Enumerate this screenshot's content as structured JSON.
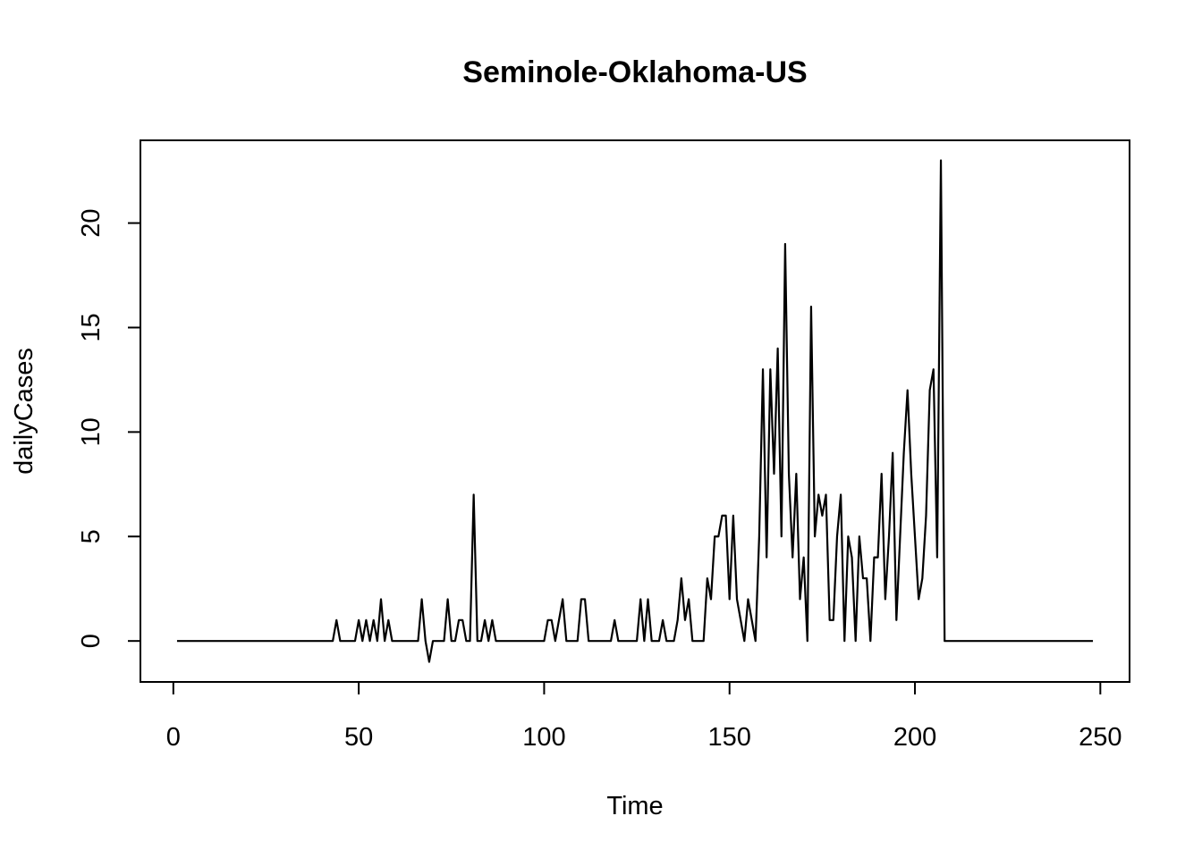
{
  "chart_data": {
    "type": "line",
    "title": "Seminole-Oklahoma-US",
    "x_label": "Time",
    "y_label": "dailyCases",
    "color": "#000000",
    "xlim": [
      -8.88,
      257.88
    ],
    "ylim": [
      -1.96,
      23.96
    ],
    "xticks": [
      0,
      50,
      100,
      150,
      200,
      250
    ],
    "yticks": [
      0,
      5,
      10,
      15,
      20
    ],
    "x": [
      1,
      2,
      3,
      4,
      5,
      6,
      7,
      8,
      9,
      10,
      11,
      12,
      13,
      14,
      15,
      16,
      17,
      18,
      19,
      20,
      21,
      22,
      23,
      24,
      25,
      26,
      27,
      28,
      29,
      30,
      31,
      32,
      33,
      34,
      35,
      36,
      37,
      38,
      39,
      40,
      41,
      42,
      43,
      44,
      45,
      46,
      47,
      48,
      49,
      50,
      51,
      52,
      53,
      54,
      55,
      56,
      57,
      58,
      59,
      60,
      61,
      62,
      63,
      64,
      65,
      66,
      67,
      68,
      69,
      70,
      71,
      72,
      73,
      74,
      75,
      76,
      77,
      78,
      79,
      80,
      81,
      82,
      83,
      84,
      85,
      86,
      87,
      88,
      89,
      90,
      91,
      92,
      93,
      94,
      95,
      96,
      97,
      98,
      99,
      100,
      101,
      102,
      103,
      104,
      105,
      106,
      107,
      108,
      109,
      110,
      111,
      112,
      113,
      114,
      115,
      116,
      117,
      118,
      119,
      120,
      121,
      122,
      123,
      124,
      125,
      126,
      127,
      128,
      129,
      130,
      131,
      132,
      133,
      134,
      135,
      136,
      137,
      138,
      139,
      140,
      141,
      142,
      143,
      144,
      145,
      146,
      147,
      148,
      149,
      150,
      151,
      152,
      153,
      154,
      155,
      156,
      157,
      158,
      159,
      160,
      161,
      162,
      163,
      164,
      165,
      166,
      167,
      168,
      169,
      170,
      171,
      172,
      173,
      174,
      175,
      176,
      177,
      178,
      179,
      180,
      181,
      182,
      183,
      184,
      185,
      186,
      187,
      188,
      189,
      190,
      191,
      192,
      193,
      194,
      195,
      196,
      197,
      198,
      199,
      200,
      201,
      202,
      203,
      204,
      205,
      206,
      207,
      208,
      209,
      210,
      211,
      212,
      213,
      214,
      215,
      216,
      217,
      218,
      219,
      220,
      221,
      222,
      223,
      224,
      225,
      226,
      227,
      228,
      229,
      230,
      231,
      232,
      233,
      234,
      235,
      236,
      237,
      238,
      239,
      240,
      241,
      242,
      243,
      244,
      245,
      246,
      247,
      248
    ],
    "values": [
      0,
      0,
      0,
      0,
      0,
      0,
      0,
      0,
      0,
      0,
      0,
      0,
      0,
      0,
      0,
      0,
      0,
      0,
      0,
      0,
      0,
      0,
      0,
      0,
      0,
      0,
      0,
      0,
      0,
      0,
      0,
      0,
      0,
      0,
      0,
      0,
      0,
      0,
      0,
      0,
      0,
      0,
      0,
      1,
      0,
      0,
      0,
      0,
      0,
      1,
      0,
      1,
      0,
      1,
      0,
      2,
      0,
      1,
      0,
      0,
      0,
      0,
      0,
      0,
      0,
      0,
      2,
      0,
      -1,
      0,
      0,
      0,
      0,
      2,
      0,
      0,
      1,
      1,
      0,
      0,
      7,
      0,
      0,
      1,
      0,
      1,
      0,
      0,
      0,
      0,
      0,
      0,
      0,
      0,
      0,
      0,
      0,
      0,
      0,
      0,
      1,
      1,
      0,
      1,
      2,
      0,
      0,
      0,
      0,
      2,
      2,
      0,
      0,
      0,
      0,
      0,
      0,
      0,
      1,
      0,
      0,
      0,
      0,
      0,
      0,
      2,
      0,
      2,
      0,
      0,
      0,
      1,
      0,
      0,
      0,
      1,
      3,
      1,
      2,
      0,
      0,
      0,
      0,
      3,
      2,
      5,
      5,
      6,
      6,
      2,
      6,
      2,
      1,
      0,
      2,
      1,
      0,
      5,
      13,
      4,
      13,
      8,
      14,
      5,
      19,
      8,
      4,
      8,
      2,
      4,
      0,
      16,
      5,
      7,
      6,
      7,
      1,
      1,
      5,
      7,
      0,
      5,
      4,
      0,
      5,
      3,
      3,
      0,
      4,
      4,
      8,
      2,
      5,
      9,
      1,
      5,
      9,
      12,
      8,
      5,
      2,
      3,
      6,
      12,
      13,
      4,
      23,
      0,
      0,
      0,
      0,
      0,
      0,
      0,
      0,
      0,
      0,
      0,
      0,
      0,
      0,
      0,
      0,
      0,
      0,
      0,
      0,
      0,
      0,
      0,
      0,
      0,
      0,
      0,
      0,
      0,
      0,
      0,
      0,
      0,
      0,
      0,
      0,
      0,
      0,
      0,
      0,
      0
    ]
  }
}
